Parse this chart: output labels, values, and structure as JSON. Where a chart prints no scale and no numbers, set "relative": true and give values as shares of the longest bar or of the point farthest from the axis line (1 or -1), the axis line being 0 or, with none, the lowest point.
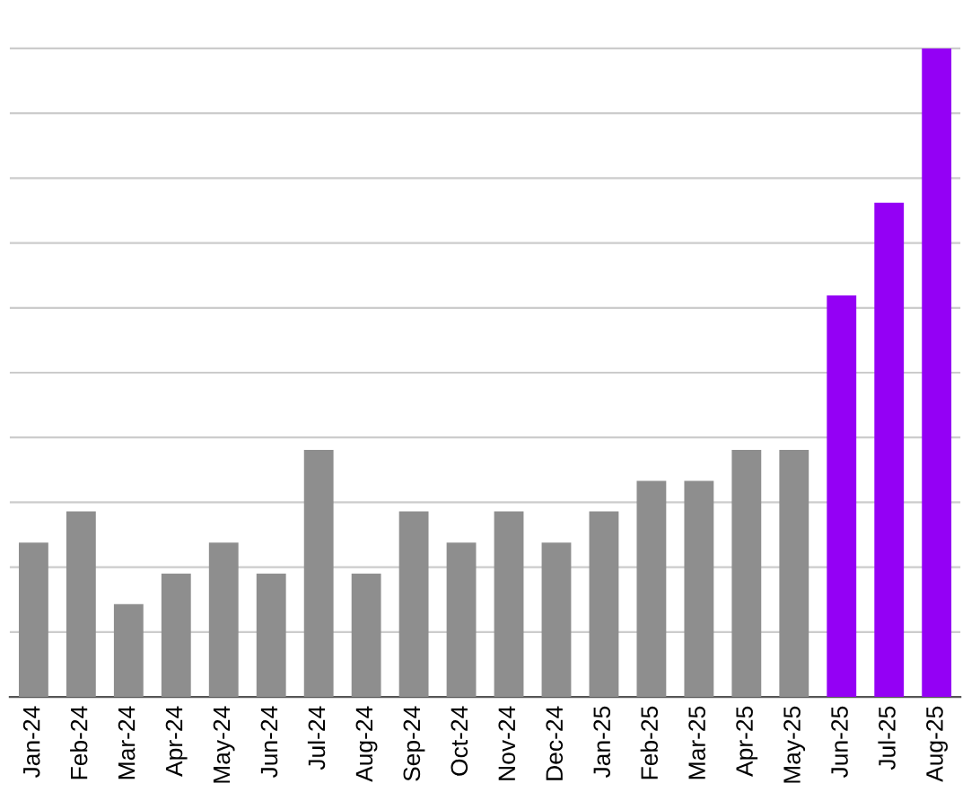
{
  "chart_data": {
    "type": "bar",
    "relative": true,
    "grid": "y",
    "legend": false,
    "categories": [
      "Jan-24",
      "Feb-24",
      "Mar-24",
      "Apr-24",
      "May-24",
      "Jun-24",
      "Jul-24",
      "Aug-24",
      "Sep-24",
      "Oct-24",
      "Nov-24",
      "Dec-24",
      "Jan-25",
      "Feb-25",
      "Mar-25",
      "Apr-25",
      "May-25",
      "Jun-25",
      "Jul-25",
      "Aug-25"
    ],
    "values": [
      0.238,
      0.286,
      0.143,
      0.19,
      0.238,
      0.19,
      0.381,
      0.19,
      0.286,
      0.238,
      0.286,
      0.238,
      0.286,
      0.333,
      0.333,
      0.381,
      0.381,
      0.619,
      0.762,
      1.0
    ],
    "colors": [
      "#8e8e8e",
      "#8e8e8e",
      "#8e8e8e",
      "#8e8e8e",
      "#8e8e8e",
      "#8e8e8e",
      "#8e8e8e",
      "#8e8e8e",
      "#8e8e8e",
      "#8e8e8e",
      "#8e8e8e",
      "#8e8e8e",
      "#8e8e8e",
      "#8e8e8e",
      "#8e8e8e",
      "#8e8e8e",
      "#8e8e8e",
      "#9400f5",
      "#9400f5",
      "#9400f5"
    ]
  }
}
